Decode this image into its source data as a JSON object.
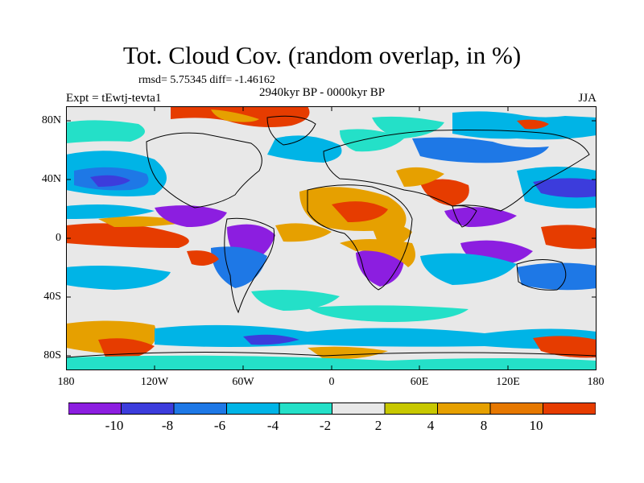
{
  "title": "Tot. Cloud Cov. (random overlap, in %)",
  "stats": "rmsd= 5.75345 diff= -1.46162",
  "subtitle": "2940kyr BP - 0000kyr BP",
  "experiment": "Expt = tEwtj-tevta1",
  "season": "JJA",
  "map": {
    "latitude_labels": [
      "80N",
      "40N",
      "0",
      "40S",
      "80S"
    ],
    "longitude_labels": [
      "180",
      "120W",
      "60W",
      "0",
      "60E",
      "120E",
      "180"
    ],
    "field_description": "June-July-August total cloud cover difference, percent",
    "colors": {
      "cool_max": "#8c1ee0",
      "cool": [
        "#3c3cdc",
        "#1e78e6",
        "#00b4e6",
        "#24e0c8"
      ],
      "neutral": "#e8e8e8",
      "warm": [
        "#c8c800",
        "#e6a000",
        "#e67800",
        "#e63c00"
      ],
      "warm_max": "#e60000"
    }
  },
  "colorbar": {
    "labels": [
      "-10",
      "-8",
      "-6",
      "-4",
      "-2",
      "2",
      "4",
      "8",
      "10"
    ],
    "colors": [
      "#8c1ee0",
      "#3c3cdc",
      "#1e78e6",
      "#00b4e6",
      "#24e0c8",
      "#e8e8e8",
      "#c8c800",
      "#e6a000",
      "#e67800",
      "#e63c00"
    ]
  }
}
